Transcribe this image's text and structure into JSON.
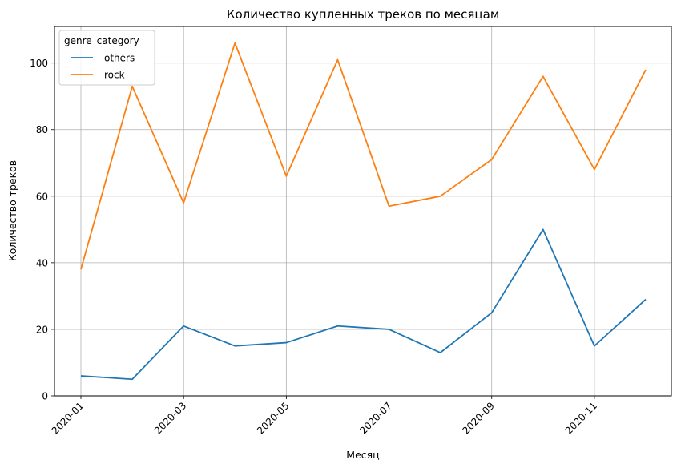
{
  "chart_data": {
    "type": "line",
    "title": "Количество купленных треков по месяцам",
    "xlabel": "Месяц",
    "ylabel": "Количество треков",
    "legend_title": "genre_category",
    "legend_position": "top-left",
    "grid": true,
    "x": [
      "2020-01",
      "2020-02",
      "2020-03",
      "2020-04",
      "2020-05",
      "2020-06",
      "2020-07",
      "2020-08",
      "2020-09",
      "2020-10",
      "2020-11",
      "2020-12"
    ],
    "x_ticks": [
      "2020-01",
      "2020-03",
      "2020-05",
      "2020-07",
      "2020-09",
      "2020-11"
    ],
    "y_ticks": [
      0,
      20,
      40,
      60,
      80,
      100
    ],
    "ylim": [
      0,
      111
    ],
    "series": [
      {
        "name": "others",
        "color": "#1f77b4",
        "values": [
          6,
          5,
          21,
          15,
          16,
          21,
          20,
          13,
          25,
          50,
          15,
          29
        ]
      },
      {
        "name": "rock",
        "color": "#ff7f0e",
        "values": [
          38,
          93,
          58,
          106,
          66,
          101,
          57,
          60,
          71,
          96,
          68,
          98
        ]
      }
    ]
  }
}
